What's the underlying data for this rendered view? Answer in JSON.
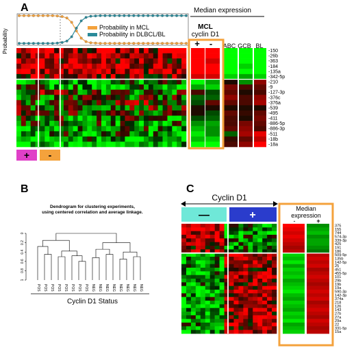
{
  "panel_labels": {
    "a": "A",
    "b": "B",
    "c": "C"
  },
  "panel_a": {
    "probability_axis_label": "Probability",
    "legend": [
      {
        "label": "Probability in MCL",
        "color": "#f4a23c"
      },
      {
        "label": "Probability in DLBCL/BL",
        "color": "#2a8a9a"
      }
    ],
    "median_expression_header": "Median expression",
    "mcl_label": "MCL",
    "cyclin_label": "cyclin D1",
    "median_cols": [
      "+",
      "-"
    ],
    "ref_cols": [
      "ABC",
      "GCB",
      "BL"
    ],
    "rows": [
      "-150",
      "-26b",
      "-363",
      "-184",
      "-135a",
      "-342-5p",
      "-210",
      "-9",
      "-127-3p",
      "-376c",
      "-376a",
      "-539",
      "-495",
      "-411",
      "-886-5p",
      "-886-3p",
      "-511",
      "-18b",
      "-18a"
    ],
    "group_boxes": [
      {
        "label": "+",
        "color": "#e040c8"
      },
      {
        "label": "-",
        "color": "#f4a23c"
      }
    ],
    "highlight_color": "#f4a23c"
  },
  "panel_b": {
    "title_line1": "Dendrogram for clustering experiments,",
    "title_line2": "using centered correlation and average linkage.",
    "leaves": [
      "POS",
      "POS",
      "POS",
      "POS",
      "POS",
      "POS",
      "POS",
      "POS",
      "NEG",
      "NEG",
      "NEG",
      "NEG",
      "NEG",
      "NEG",
      "NEG",
      "NEG"
    ],
    "y_ticks": [
      "0",
      "0.2",
      "0.4",
      "0.6",
      "0.8",
      "1"
    ],
    "xlabel": "Cyclin D1  Status"
  },
  "panel_c": {
    "cyclin_label": "Cyclin D1",
    "group_boxes": [
      {
        "label": "—",
        "color": "#6fe8d8"
      },
      {
        "label": "+",
        "color": "#2a3ccc"
      }
    ],
    "median_header_line1": "Median",
    "median_header_line2": "expression",
    "median_cols": [
      "-",
      "+"
    ],
    "rows": [
      "375",
      "155",
      "744",
      "574-3p",
      "339-3p",
      "425",
      "191",
      "186",
      "509-5p",
      "135b",
      "142-5p",
      "25",
      "451",
      "455-5p",
      "101",
      "29b",
      "19b",
      "19a",
      "590-3p",
      "142-3p",
      "374a",
      "218",
      "126",
      "143",
      "27b",
      "27a",
      "29a",
      "22",
      "331-5p",
      "15a"
    ],
    "highlight_color": "#f4a23c"
  },
  "chart_data": [
    {
      "type": "line",
      "title": "",
      "ylabel": "Probability",
      "ylim": [
        0,
        1
      ],
      "series": [
        {
          "name": "Probability in MCL",
          "values": [
            0.98,
            0.98,
            0.98,
            0.98,
            0.98,
            0.98,
            0.98,
            0.98,
            0.97,
            0.95,
            0.9,
            0.75,
            0.45,
            0.2,
            0.08,
            0.04,
            0.03,
            0.02,
            0.02,
            0.02,
            0.02,
            0.02,
            0.02,
            0.02,
            0.02,
            0.02,
            0.02,
            0.02,
            0.02,
            0.02,
            0.02,
            0.02,
            0.02,
            0.02,
            0.02,
            0.02
          ]
        },
        {
          "name": "Probability in DLBCL/BL",
          "values": [
            0.02,
            0.02,
            0.02,
            0.02,
            0.02,
            0.02,
            0.02,
            0.02,
            0.03,
            0.05,
            0.1,
            0.25,
            0.55,
            0.8,
            0.92,
            0.96,
            0.97,
            0.98,
            0.98,
            0.98,
            0.98,
            0.98,
            0.98,
            0.98,
            0.98,
            0.98,
            0.98,
            0.98,
            0.98,
            0.98,
            0.98,
            0.98,
            0.98,
            0.98,
            0.98,
            0.98
          ]
        }
      ]
    },
    {
      "type": "heatmap",
      "title": "",
      "rows": [
        "-150",
        "-26b",
        "-363",
        "-184",
        "-135a",
        "-342-5p",
        "-210",
        "-9",
        "-127-3p",
        "-376c",
        "-376a",
        "-539",
        "-495",
        "-411",
        "-886-5p",
        "-886-3p",
        "-511",
        "-18b",
        "-18a"
      ],
      "columns": [
        "+",
        "-",
        "ABC",
        "GCB",
        "BL"
      ],
      "values": [
        [
          1,
          1,
          -1,
          -1,
          -1
        ],
        [
          1,
          1,
          -1,
          -1,
          -1
        ],
        [
          1,
          0.8,
          -1,
          -1,
          -1
        ],
        [
          1,
          1,
          -1,
          -0.8,
          -1
        ],
        [
          1,
          1,
          -1,
          -1,
          -1
        ],
        [
          0.8,
          0.8,
          -0.8,
          -0.6,
          -0.8
        ],
        [
          -1,
          -0.6,
          0,
          -0.5,
          0.5
        ],
        [
          -0.6,
          -0.8,
          0.4,
          0.2,
          0.3
        ],
        [
          0.2,
          -0.2,
          0.3,
          0,
          0.2
        ],
        [
          -0.3,
          -0.3,
          0.5,
          0.2,
          0.5
        ],
        [
          -0.2,
          0.3,
          0.3,
          0.2,
          0.6
        ],
        [
          0,
          0,
          0,
          0,
          0
        ],
        [
          0,
          -0.2,
          0.3,
          0.1,
          0.3
        ],
        [
          -0.2,
          -0.3,
          0.2,
          0,
          0.4
        ],
        [
          -0.5,
          -0.6,
          0.2,
          0.4,
          0.3
        ],
        [
          -0.7,
          -0.5,
          0.3,
          0.5,
          0.2
        ],
        [
          -0.9,
          -0.5,
          -0.3,
          0.6,
          0.9
        ],
        [
          -0.7,
          -0.8,
          0.1,
          0.3,
          0.7
        ],
        [
          -1,
          -1,
          0.2,
          0.5,
          1
        ]
      ]
    },
    {
      "type": "heatmap",
      "title": "",
      "rows": [
        "375",
        "155",
        "744",
        "574-3p",
        "339-3p",
        "425",
        "191",
        "186",
        "509-5p",
        "135b",
        "142-5p",
        "25",
        "451",
        "455-5p",
        "101",
        "29b",
        "19b",
        "19a",
        "590-3p",
        "142-3p",
        "374a",
        "218",
        "126",
        "143",
        "27b",
        "27a",
        "29a",
        "22",
        "331-5p",
        "15a"
      ],
      "columns": [
        "-",
        "+"
      ],
      "values": [
        [
          1,
          -0.5
        ],
        [
          0.9,
          -0.6
        ],
        [
          0.8,
          -0.7
        ],
        [
          0.9,
          -0.5
        ],
        [
          0.8,
          -0.6
        ],
        [
          0.7,
          -0.6
        ],
        [
          0.6,
          -0.5
        ],
        [
          0.7,
          -0.4
        ],
        [
          -0.8,
          0.7
        ],
        [
          -0.7,
          0.8
        ],
        [
          -0.9,
          0.7
        ],
        [
          -0.6,
          0.8
        ],
        [
          -0.8,
          0.6
        ],
        [
          -0.7,
          0.7
        ],
        [
          -0.8,
          0.8
        ],
        [
          -0.6,
          0.7
        ],
        [
          -0.7,
          0.6
        ],
        [
          -0.8,
          0.7
        ],
        [
          -0.9,
          0.8
        ],
        [
          -0.7,
          0.7
        ],
        [
          -0.6,
          0.8
        ],
        [
          -0.8,
          0.6
        ],
        [
          -0.7,
          0.7
        ],
        [
          -0.6,
          0.8
        ],
        [
          -0.8,
          0.7
        ],
        [
          -0.7,
          0.6
        ],
        [
          -0.9,
          0.8
        ],
        [
          -0.6,
          0.7
        ],
        [
          -0.7,
          0.6
        ],
        [
          -0.8,
          0.7
        ]
      ]
    }
  ]
}
